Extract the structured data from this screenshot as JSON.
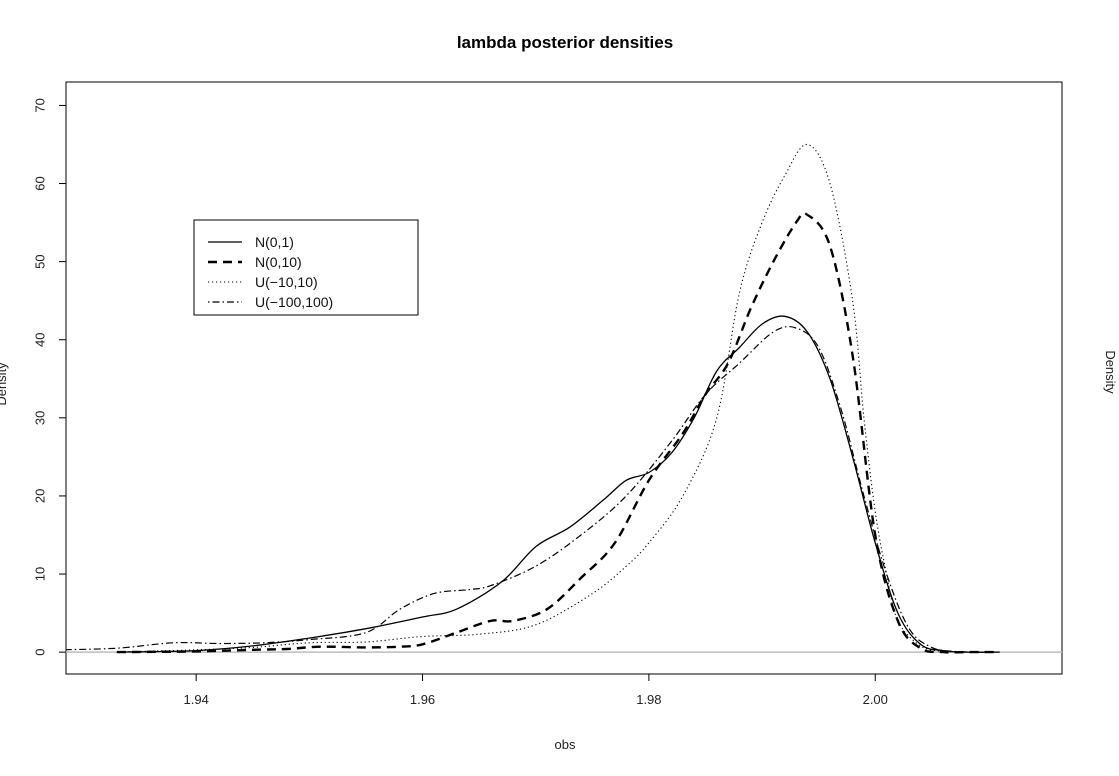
{
  "chart_data": {
    "type": "line",
    "title": "lambda posterior densities",
    "xlabel": "obs",
    "ylabel": "Density",
    "ylabel_right": "Density",
    "xlim": [
      1.9285,
      2.0165
    ],
    "ylim": [
      -2.8,
      73.0
    ],
    "xticks": [
      1.94,
      1.96,
      1.98,
      2.0
    ],
    "xtick_labels": [
      "1.94",
      "1.96",
      "1.98",
      "2.00"
    ],
    "yticks": [
      0,
      10,
      20,
      30,
      40,
      50,
      60,
      70
    ],
    "ytick_labels": [
      "0",
      "10",
      "20",
      "30",
      "40",
      "50",
      "60",
      "70"
    ],
    "zero_line": true,
    "grid": false,
    "legend_position": "top-left",
    "series": [
      {
        "name": "N(0,1)",
        "linestyle": "solid",
        "x": [
          1.933,
          1.94,
          1.945,
          1.95,
          1.955,
          1.96,
          1.963,
          1.967,
          1.97,
          1.973,
          1.976,
          1.978,
          1.98,
          1.982,
          1.984,
          1.986,
          1.988,
          1.99,
          1.992,
          1.994,
          1.996,
          1.998,
          2.0,
          2.002,
          2.004,
          2.006,
          2.008,
          2.011
        ],
        "y": [
          0,
          0.2,
          0.8,
          1.8,
          3.0,
          4.5,
          5.5,
          9.0,
          13.5,
          16.0,
          19.5,
          22.0,
          23.0,
          25.5,
          30.0,
          36.0,
          39.0,
          42.0,
          43.0,
          41.0,
          35.0,
          25.0,
          14.0,
          5.0,
          1.0,
          0.2,
          0,
          0
        ]
      },
      {
        "name": "N(0,10)",
        "linestyle": "dashed",
        "x": [
          1.933,
          1.94,
          1.945,
          1.948,
          1.951,
          1.955,
          1.958,
          1.96,
          1.963,
          1.966,
          1.968,
          1.971,
          1.974,
          1.977,
          1.98,
          1.983,
          1.985,
          1.987,
          1.989,
          1.991,
          1.993,
          1.994,
          1.996,
          1.998,
          2.0,
          2.002,
          2.004,
          2.006,
          2.008,
          2.011
        ],
        "y": [
          0,
          0.1,
          0.3,
          0.4,
          0.7,
          0.6,
          0.7,
          1.0,
          2.5,
          4.0,
          4.0,
          5.5,
          9.5,
          14.0,
          22.0,
          28.0,
          33.0,
          37.0,
          44.0,
          50.0,
          55.0,
          56.0,
          52.0,
          38.0,
          15.0,
          4.0,
          0.5,
          0,
          0,
          0
        ]
      },
      {
        "name": "U(−10,10)",
        "linestyle": "dotted",
        "x": [
          1.933,
          1.94,
          1.945,
          1.95,
          1.955,
          1.96,
          1.965,
          1.97,
          1.975,
          1.978,
          1.98,
          1.983,
          1.986,
          1.988,
          1.99,
          1.992,
          1.994,
          1.996,
          1.998,
          1.999,
          2.0,
          2.001,
          2.002,
          2.004,
          2.006,
          2.008,
          2.011
        ],
        "y": [
          0,
          0.3,
          0.6,
          1.2,
          1.3,
          2.0,
          2.3,
          3.5,
          7.5,
          11.0,
          14.0,
          20.0,
          30.0,
          46.0,
          55.0,
          61.0,
          65.0,
          60.0,
          45.0,
          30.0,
          18.0,
          10.0,
          4.0,
          0.8,
          0.1,
          0,
          0
        ]
      },
      {
        "name": "U(−100,100)",
        "linestyle": "dotdash",
        "x": [
          1.928,
          1.933,
          1.938,
          1.942,
          1.946,
          1.95,
          1.955,
          1.958,
          1.961,
          1.964,
          1.966,
          1.97,
          1.974,
          1.978,
          1.982,
          1.985,
          1.988,
          1.991,
          1.993,
          1.995,
          1.997,
          1.999,
          2.001,
          2.003,
          2.005,
          2.007,
          2.01
        ],
        "y": [
          0.3,
          0.5,
          1.2,
          1.1,
          1.2,
          1.6,
          2.5,
          5.5,
          7.5,
          8.0,
          8.5,
          11.0,
          15.0,
          20.0,
          27.0,
          33.0,
          37.0,
          41.0,
          41.5,
          39.0,
          31.0,
          20.0,
          10.0,
          3.0,
          0.6,
          0.1,
          0
        ]
      }
    ]
  }
}
